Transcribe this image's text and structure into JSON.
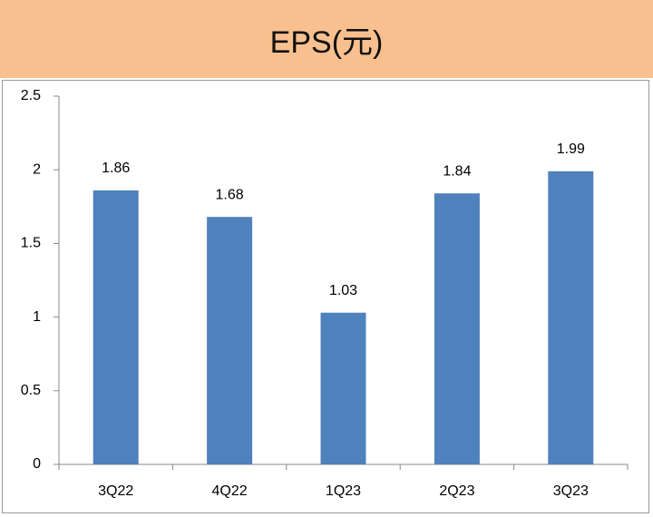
{
  "chart_data": {
    "type": "bar",
    "title": "EPS(元)",
    "categories": [
      "3Q22",
      "4Q22",
      "1Q23",
      "2Q23",
      "3Q23"
    ],
    "values": [
      1.86,
      1.68,
      1.03,
      1.84,
      1.99
    ],
    "color": "#4f81bd",
    "ylim": [
      0,
      2.5
    ],
    "yticks": [
      0,
      0.5,
      1,
      1.5,
      2,
      2.5
    ],
    "grid": false
  }
}
